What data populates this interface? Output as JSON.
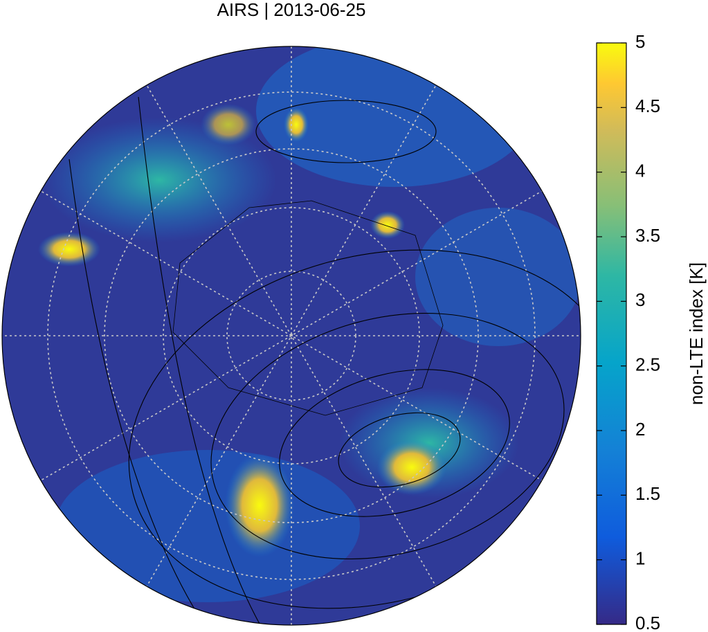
{
  "chart_data": {
    "type": "map",
    "title": "AIRS | 2013-06-25",
    "colorbar": {
      "label": "non-LTE index [K]",
      "lim": [
        0.5,
        5
      ],
      "ticks": [
        0.5,
        1,
        1.5,
        2,
        2.5,
        3,
        3.5,
        4,
        4.5,
        5
      ]
    }
  }
}
